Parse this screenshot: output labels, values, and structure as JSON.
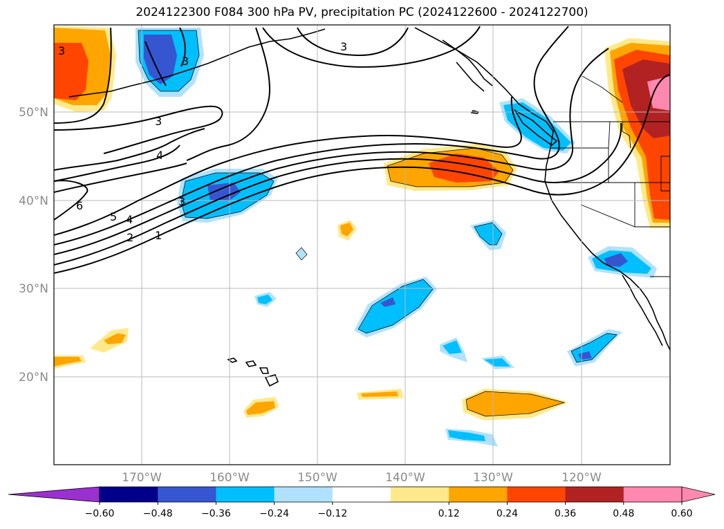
{
  "title": "2024122300 F084 300 hPa PV, precipitation PC (2024122600 - 2024122700)",
  "latitude_labels": [
    "50°N",
    "40°N",
    "30°N",
    "20°N"
  ],
  "longitude_labels": [
    "170°W",
    "160°W",
    "150°W",
    "140°W",
    "130°W",
    "120°W"
  ],
  "colorbar": {
    "tick_labels": [
      "−0.60",
      "−0.48",
      "−0.36",
      "−0.24",
      "−0.12",
      "0.12",
      "0.24",
      "0.36",
      "0.48",
      "0.60"
    ],
    "colors": [
      "#9b30d0",
      "#00008b",
      "#3556d0",
      "#00bfff",
      "#b0e2ff",
      "#ffffff",
      "#ffe98a",
      "#ffa500",
      "#ff4500",
      "#b22222",
      "#ff88b0",
      "#ff88b0"
    ]
  },
  "pv_contour_labels": [
    "1",
    "2",
    "3",
    "4",
    "5",
    "6",
    "3",
    "4",
    "3",
    "3",
    "3"
  ],
  "legend_colors": {
    "neg_strong": "#3556d0",
    "neg_mid": "#00bfff",
    "neg_weak": "#b0e2ff",
    "pos_weak": "#ffe98a",
    "pos_mid": "#ffa500",
    "pos_high": "#ff4500",
    "pos_strong": "#b22222",
    "pos_max": "#ff88b0"
  }
}
